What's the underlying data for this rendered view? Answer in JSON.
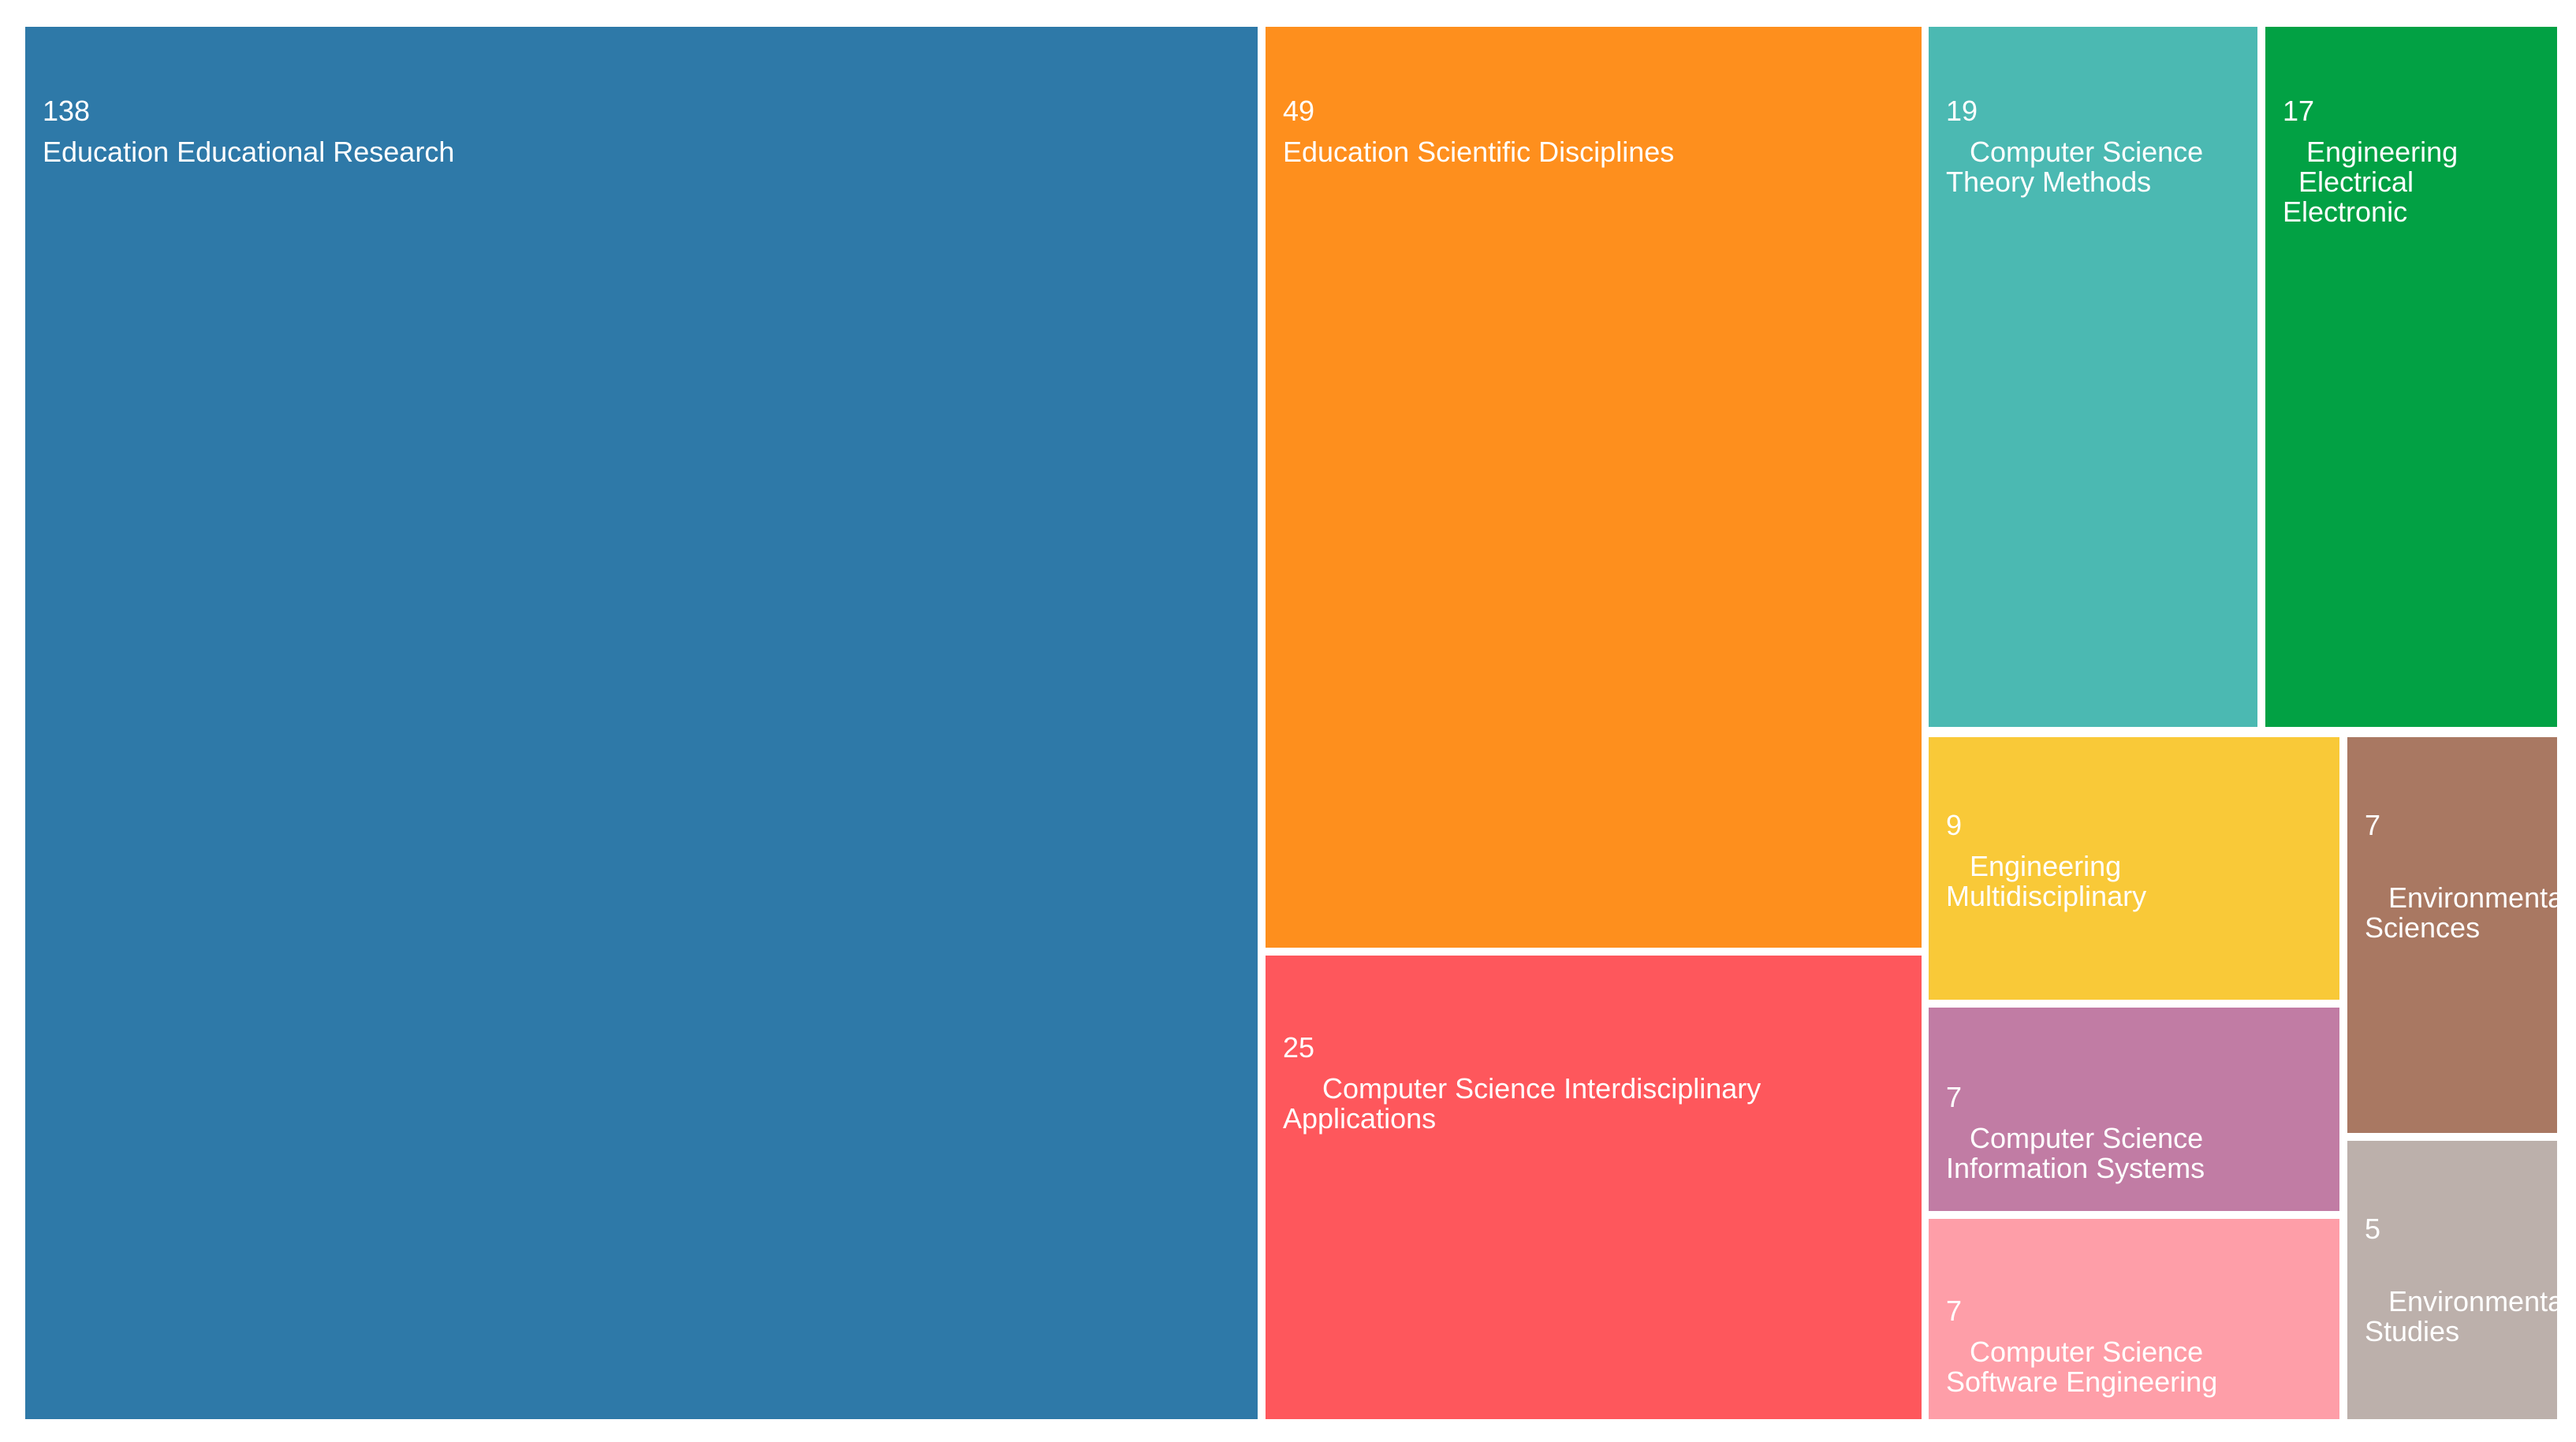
{
  "chart_data": {
    "type": "treemap",
    "title": "",
    "items": [
      {
        "value": 138,
        "label": "Education Educational Research",
        "color": "#2e79a8"
      },
      {
        "value": 49,
        "label": "Education Scientific Disciplines",
        "color": "#fe8f1d"
      },
      {
        "value": 25,
        "label": "     Computer Science Interdisciplinary\nApplications",
        "color": "#fe575c"
      },
      {
        "value": 19,
        "label": "   Computer Science\nTheory Methods",
        "color": "#4bb9b2"
      },
      {
        "value": 17,
        "label": "   Engineering\n  Electrical\nElectronic",
        "color": "#02a144"
      },
      {
        "value": 9,
        "label": "   Engineering\nMultidisciplinary",
        "color": "#f9c938"
      },
      {
        "value": 7,
        "label": "   Computer Science\nInformation Systems",
        "color": "#c17ca4"
      },
      {
        "value": 7,
        "label": "   Computer Science\nSoftware Engineering",
        "color": "#fe9ea8"
      },
      {
        "value": 7,
        "label": "   Environmental\nSciences",
        "color": "#a97862"
      },
      {
        "value": 5,
        "label": "   Environmental\nStudies",
        "color": "#bcb0ab"
      }
    ]
  }
}
